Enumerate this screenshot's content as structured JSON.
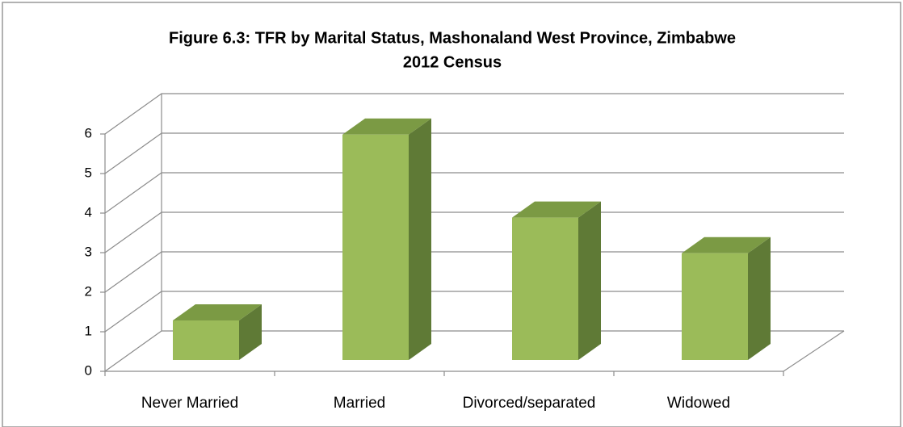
{
  "chart_data": {
    "type": "bar3d",
    "title": "Figure 6.3: TFR by Marital Status, Mashonaland  West Province, Zimbabwe",
    "subtitle": "2012 Census",
    "categories": [
      "Never Married",
      "Married",
      "Divorced/separated",
      "Widowed"
    ],
    "values": [
      1.0,
      5.7,
      3.6,
      2.7
    ],
    "color": "#9bbb59",
    "ylim": [
      0,
      6
    ],
    "yticks": [
      0,
      1,
      2,
      3,
      4,
      5,
      6
    ],
    "grid": true
  }
}
